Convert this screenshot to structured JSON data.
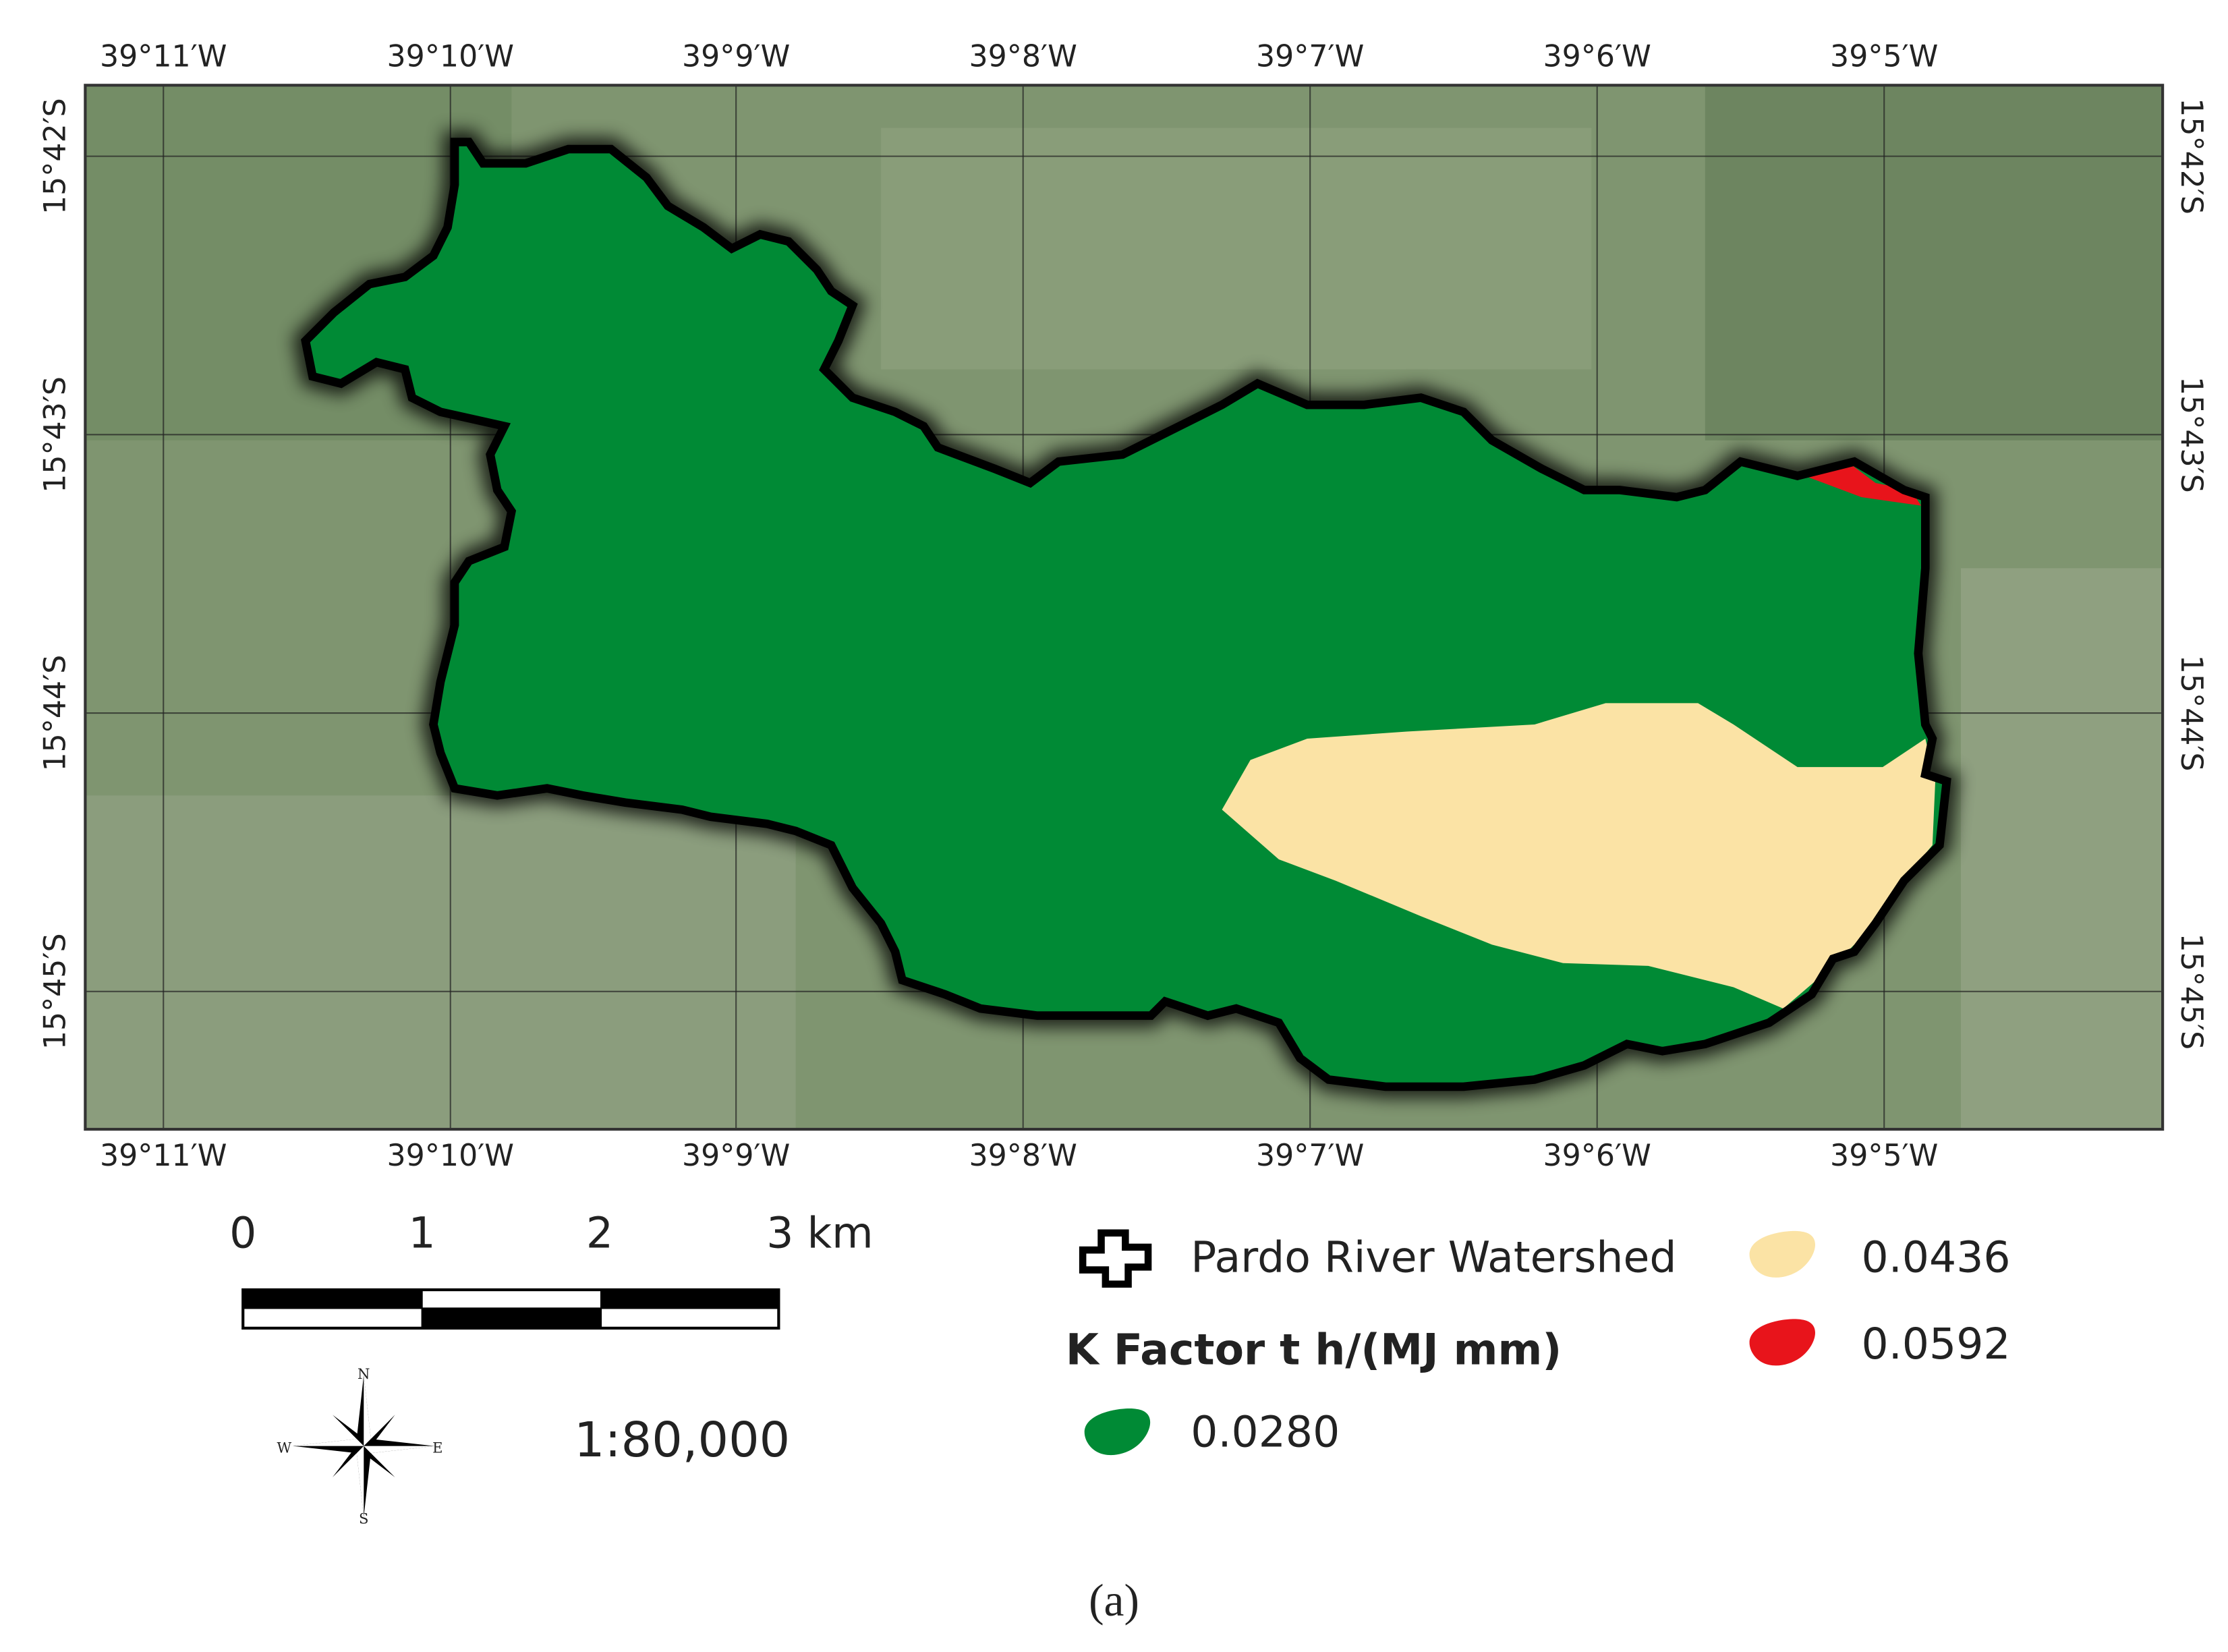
{
  "map": {
    "top_labels": [
      "39°11′W",
      "39°10′W",
      "39°9′W",
      "39°8′W",
      "39°7′W",
      "39°6′W",
      "39°5′W"
    ],
    "bottom_labels": [
      "39°11′W",
      "39°10′W",
      "39°9′W",
      "39°8′W",
      "39°7′W",
      "39°6′W",
      "39°5′W"
    ],
    "left_labels": [
      "15°42′S",
      "15°43′S",
      "15°44′S",
      "15°45′S"
    ],
    "right_labels": [
      "15°42′S",
      "15°43′S",
      "15°44′S",
      "15°45′S"
    ]
  },
  "scale_bar": {
    "labels": [
      "0",
      "1",
      "2",
      "3 km"
    ],
    "ratio": "1:80,000"
  },
  "compass": {
    "north": "N",
    "south": "S",
    "east": "E",
    "west": "W"
  },
  "legend": {
    "boundary": "Pardo River Watershed",
    "title": "K Factor t h/(MJ mm)",
    "items": [
      {
        "label": "0.0280",
        "color": "#008a35"
      },
      {
        "label": "0.0436",
        "color": "#fbe3a5"
      },
      {
        "label": "0.0592",
        "color": "#e8141b"
      }
    ]
  },
  "caption": "(a)"
}
